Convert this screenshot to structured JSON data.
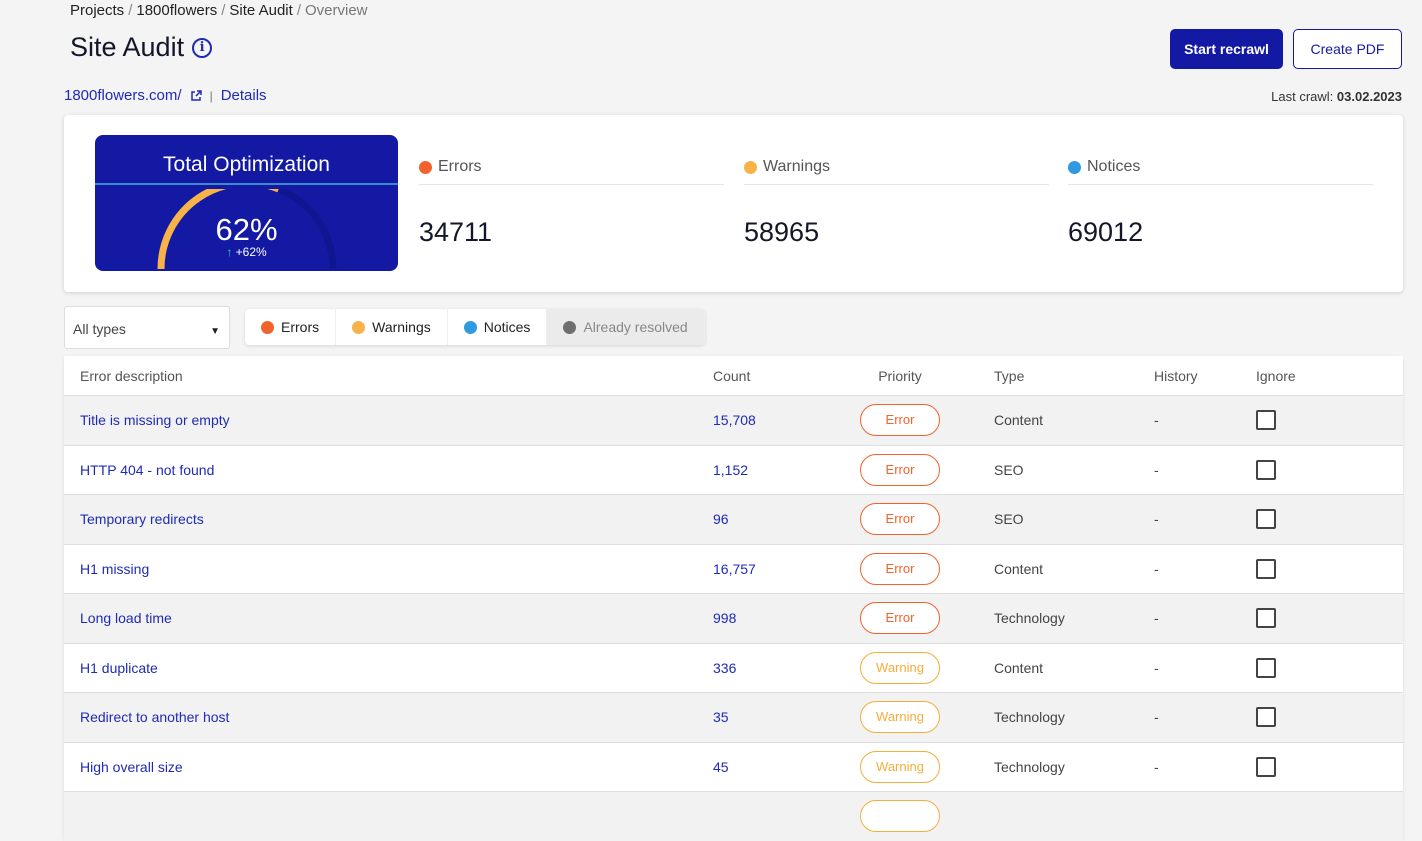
{
  "breadcrumb": [
    "Projects",
    "1800flowers",
    "Site Audit",
    "Overview"
  ],
  "title": "Site Audit",
  "buttons": {
    "recrawl": "Start recrawl",
    "pdf": "Create PDF"
  },
  "site": {
    "url": "1800flowers.com/",
    "details": "Details"
  },
  "last_crawl": {
    "label": "Last crawl:",
    "date": "03.02.2023"
  },
  "optimization": {
    "title": "Total Optimization",
    "value": "62%",
    "change": "+62%",
    "percent": 62,
    "colors": {
      "fill": "#f8b24a",
      "track": "#0e1790"
    }
  },
  "stats": [
    {
      "label": "Errors",
      "value": "34711",
      "color": "#f2622c"
    },
    {
      "label": "Warnings",
      "value": "58965",
      "color": "#f8b24a"
    },
    {
      "label": "Notices",
      "value": "69012",
      "color": "#2f9ae0"
    }
  ],
  "type_select": "All types",
  "filters": [
    {
      "label": "Errors",
      "color": "#f2622c"
    },
    {
      "label": "Warnings",
      "color": "#f8b24a"
    },
    {
      "label": "Notices",
      "color": "#2f9ae0"
    },
    {
      "label": "Already resolved",
      "color": "#6f6f6f"
    }
  ],
  "table": {
    "headers": [
      "Error description",
      "Count",
      "Priority",
      "Type",
      "History",
      "Ignore"
    ],
    "rows": [
      {
        "desc": "Title is missing or empty",
        "count": "15,708",
        "priority": "Error",
        "type": "Content",
        "history": "-"
      },
      {
        "desc": "HTTP 404 - not found",
        "count": "1,152",
        "priority": "Error",
        "type": "SEO",
        "history": "-"
      },
      {
        "desc": "Temporary redirects",
        "count": "96",
        "priority": "Error",
        "type": "SEO",
        "history": "-"
      },
      {
        "desc": "H1 missing",
        "count": "16,757",
        "priority": "Error",
        "type": "Content",
        "history": "-"
      },
      {
        "desc": "Long load time",
        "count": "998",
        "priority": "Error",
        "type": "Technology",
        "history": "-"
      },
      {
        "desc": "H1 duplicate",
        "count": "336",
        "priority": "Warning",
        "type": "Content",
        "history": "-"
      },
      {
        "desc": "Redirect to another host",
        "count": "35",
        "priority": "Warning",
        "type": "Technology",
        "history": "-"
      },
      {
        "desc": "High overall size",
        "count": "45",
        "priority": "Warning",
        "type": "Technology",
        "history": "-"
      }
    ]
  }
}
